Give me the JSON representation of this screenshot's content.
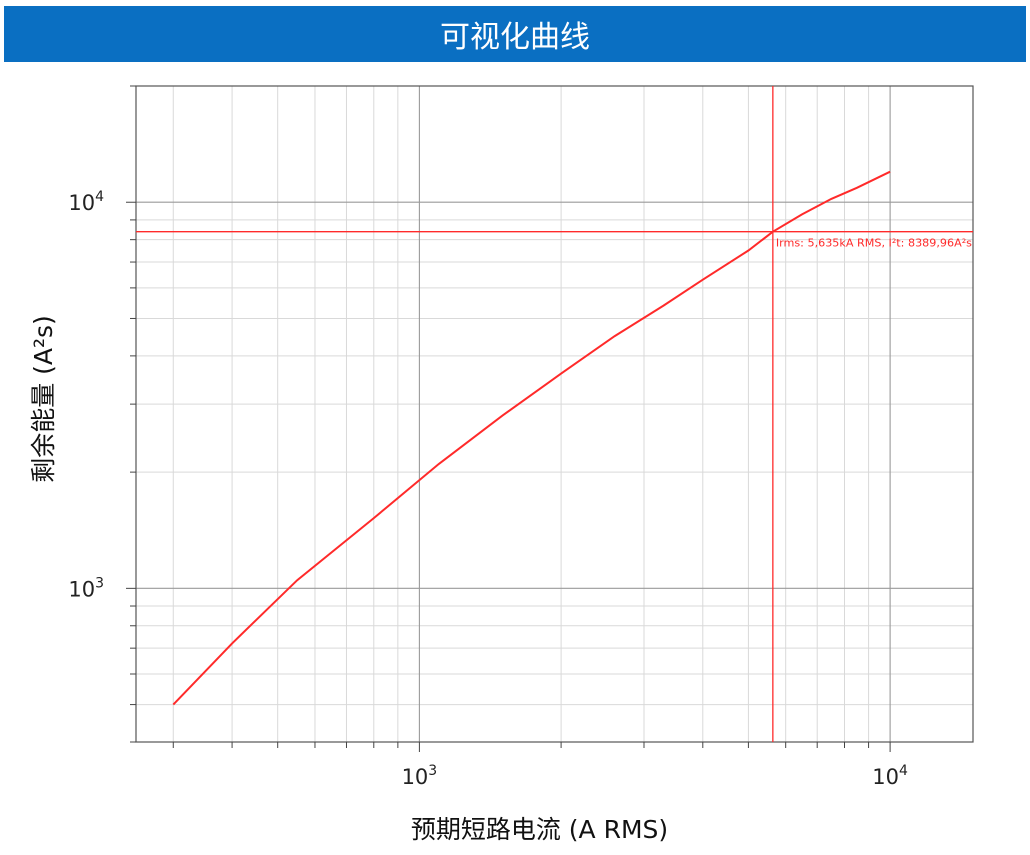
{
  "banner": {
    "title": "可视化曲线"
  },
  "colors": {
    "banner": "#0a6fc2",
    "curve": "#ff2a2a",
    "crosshair": "#ff2a2a"
  },
  "chart_data": {
    "type": "line",
    "xscale": "log",
    "yscale": "log",
    "xlim": [
      250,
      15000
    ],
    "ylim": [
      400,
      20000
    ],
    "grid": true,
    "xlabel": "预期短路电流 (A RMS)",
    "ylabel": "剩余能量 (A²s)",
    "x_ticks": [
      {
        "value": 1000,
        "base": "10",
        "exp": "3"
      },
      {
        "value": 10000,
        "base": "10",
        "exp": "4"
      }
    ],
    "y_ticks": [
      {
        "value": 1000,
        "base": "10",
        "exp": "3"
      },
      {
        "value": 10000,
        "base": "10",
        "exp": "4"
      }
    ],
    "series": [
      {
        "x": [
          300,
          400,
          550,
          800,
          1100,
          1500,
          2000,
          2600,
          3300,
          4000,
          5000,
          5635,
          6500,
          7500,
          8500,
          10000
        ],
        "y": [
          500,
          720,
          1050,
          1520,
          2100,
          2800,
          3600,
          4500,
          5400,
          6300,
          7500,
          8390,
          9300,
          10200,
          10900,
          12000
        ]
      }
    ],
    "crosshair": {
      "x": 5635,
      "y": 8389.96
    },
    "annotation": "Irms: 5,635kA RMS, I²t: 8389,96A²s"
  }
}
